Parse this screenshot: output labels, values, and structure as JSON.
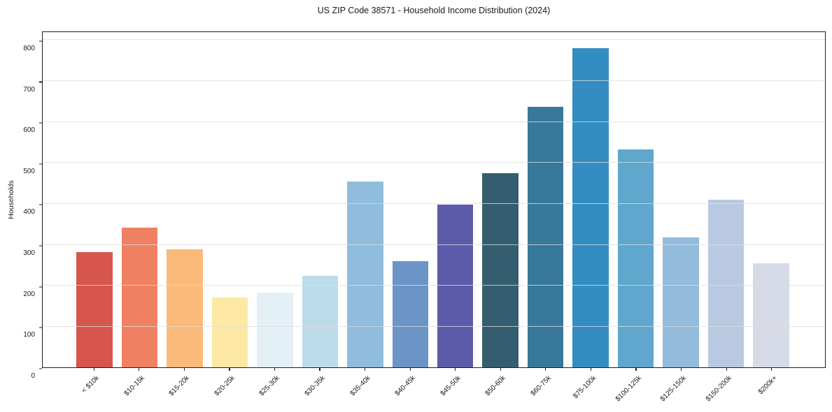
{
  "figure": {
    "background": "#ffffff",
    "frame_color": "#1f1f1f",
    "gridline_color": "#dedede"
  },
  "chart_data": {
    "type": "bar",
    "title": "US ZIP Code 38571 - Household Income Distribution (2024)",
    "xlabel": "",
    "ylabel": "Households",
    "ylim": [
      0,
      800
    ],
    "yticks": [
      0,
      100,
      200,
      300,
      400,
      500,
      600,
      700,
      800
    ],
    "grid": "horizontal-only, drawn over bars",
    "legend": "none",
    "categories": [
      "< $10k",
      "$10-15k",
      "$15-20k",
      "$20-25k",
      "$25-30k",
      "$30-35k",
      "$35-40k",
      "$40-45k",
      "$45-50k",
      "$50-60k",
      "$60-75k",
      "$75-100k",
      "$100-125k",
      "$125-150k",
      "$150-200k",
      "$200k+"
    ],
    "values": [
      282,
      343,
      290,
      171,
      184,
      225,
      456,
      260,
      399,
      476,
      638,
      782,
      535,
      319,
      411,
      255
    ],
    "bar_colors": [
      "#d6564e",
      "#ef8061",
      "#fbba7a",
      "#fde9a4",
      "#e3f0f6",
      "#bcdcec",
      "#90bddd",
      "#6b94c7",
      "#5c5bab",
      "#345e70",
      "#37789b",
      "#348dc2",
      "#5fa7cc",
      "#93bbdc",
      "#b8c9e1",
      "#d7dae7"
    ]
  }
}
